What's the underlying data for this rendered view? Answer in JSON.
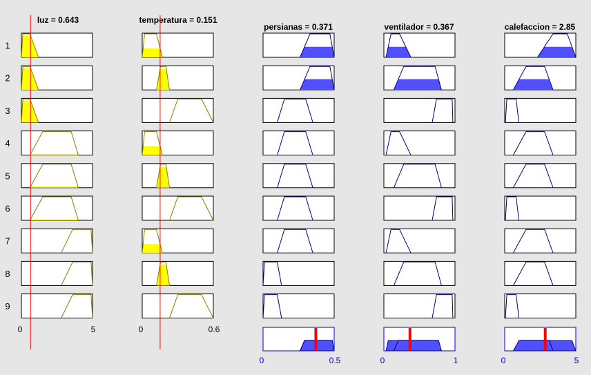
{
  "window": {
    "inputs": [
      {
        "name": "luz",
        "title": "luz = 0.643",
        "value": 0.643,
        "range": [
          0,
          5
        ],
        "tick_labels": [
          "0",
          "5"
        ]
      },
      {
        "name": "temperatura",
        "title": "temperatura = 0.151",
        "value": 0.151,
        "range": [
          0,
          0.6
        ],
        "tick_labels": [
          "0",
          "0.6"
        ]
      }
    ],
    "outputs": [
      {
        "name": "persianas",
        "title": "persianas = 0.371",
        "value": 0.371,
        "range": [
          0,
          0.5
        ],
        "tick_labels": [
          "0",
          "0.5"
        ]
      },
      {
        "name": "ventilador",
        "title": "ventilador = 0.367",
        "value": 0.367,
        "range": [
          0,
          1
        ],
        "tick_labels": [
          "0",
          "1"
        ]
      },
      {
        "name": "calefaccion",
        "title": "calefaccion = 2.85",
        "value": 2.85,
        "range": [
          0,
          5
        ],
        "tick_labels": [
          "0",
          "5"
        ]
      }
    ],
    "rule_labels": [
      "1",
      "2",
      "3",
      "4",
      "5",
      "6",
      "7",
      "8",
      "9"
    ],
    "rules": [
      {
        "luz": "low",
        "temperatura": "low",
        "persianas": "high",
        "ventilador": "low",
        "calefaccion": "high",
        "firing": 0.45
      },
      {
        "luz": "low",
        "temperatura": "medium",
        "persianas": "high",
        "ventilador": "medium",
        "calefaccion": "medium",
        "firing": 0.46
      },
      {
        "luz": "low",
        "temperatura": "high",
        "persianas": "medium",
        "ventilador": "high",
        "calefaccion": "low",
        "firing": 0
      },
      {
        "luz": "medium",
        "temperatura": "low",
        "persianas": "medium",
        "ventilador": "low",
        "calefaccion": "medium",
        "firing": 0
      },
      {
        "luz": "medium",
        "temperatura": "medium",
        "persianas": "medium",
        "ventilador": "medium",
        "calefaccion": "medium",
        "firing": 0
      },
      {
        "luz": "medium",
        "temperatura": "high",
        "persianas": "medium",
        "ventilador": "high",
        "calefaccion": "low",
        "firing": 0
      },
      {
        "luz": "high",
        "temperatura": "low",
        "persianas": "medium",
        "ventilador": "low",
        "calefaccion": "medium",
        "firing": 0
      },
      {
        "luz": "high",
        "temperatura": "medium",
        "persianas": "low",
        "ventilador": "medium",
        "calefaccion": "medium",
        "firing": 0
      },
      {
        "luz": "high",
        "temperatura": "high",
        "persianas": "low",
        "ventilador": "high",
        "calefaccion": "low",
        "firing": 0
      }
    ],
    "membership_functions": {
      "luz": {
        "low": [
          0,
          0.1,
          0.6,
          1.2
        ],
        "medium": [
          0.6,
          1.5,
          3.5,
          4.0
        ],
        "high": [
          2.8,
          3.6,
          4.9,
          5.0
        ]
      },
      "temperatura": {
        "low": [
          0,
          0.02,
          0.12,
          0.17
        ],
        "medium": [
          0.12,
          0.155,
          0.2,
          0.23
        ],
        "high": [
          0.23,
          0.3,
          0.5,
          0.6
        ]
      },
      "persianas": {
        "low": [
          0,
          0.01,
          0.1,
          0.13
        ],
        "medium": [
          0.1,
          0.15,
          0.3,
          0.35
        ],
        "high": [
          0.26,
          0.33,
          0.47,
          0.5
        ]
      },
      "ventilador": {
        "low": [
          0.03,
          0.1,
          0.22,
          0.38
        ],
        "medium": [
          0.14,
          0.28,
          0.72,
          0.81
        ],
        "high": [
          0.68,
          0.74,
          0.96,
          0.97
        ]
      },
      "calefaccion": {
        "low": [
          0.05,
          0.15,
          0.8,
          1.0
        ],
        "medium": [
          0.6,
          1.5,
          2.8,
          3.4
        ],
        "high": [
          2.3,
          3.4,
          4.4,
          5.0
        ]
      }
    },
    "colors": {
      "background": "#e6e6e6",
      "input_stroke": "#808000",
      "input_fill": "#ffff00",
      "output_stroke": "#000080",
      "output_fill": "#5050ff",
      "marker": "#ff0000",
      "output_frame": "#0000cc"
    }
  }
}
